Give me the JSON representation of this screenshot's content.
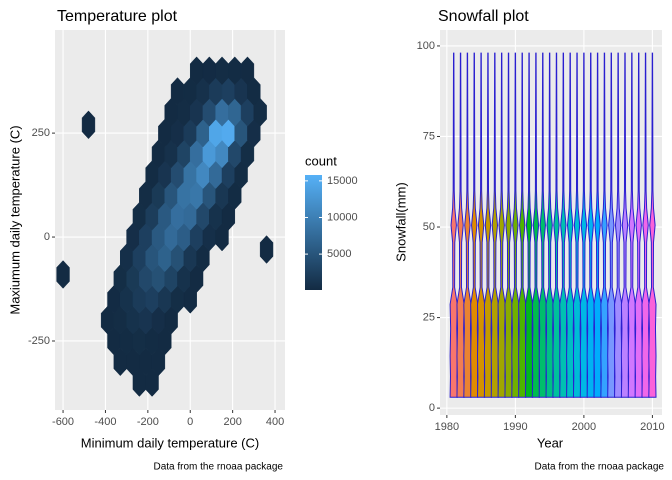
{
  "chart_data": [
    {
      "type": "hexbin",
      "title": "Temperature plot",
      "x_label": "Minimum daily temperature (C)",
      "y_label": "Maxiumum daily temperature (C)",
      "caption": "Data from the rnoaa package",
      "legend_title": "count",
      "xlim": [
        -638,
        447
      ],
      "ylim": [
        -416,
        498
      ],
      "xticks": [
        -600,
        -400,
        -200,
        0,
        200,
        400
      ],
      "yticks": [
        -250,
        0,
        250
      ],
      "legend_lim": [
        100,
        15800
      ],
      "legend_ticks": [
        5000,
        10000,
        15000
      ],
      "low_color": "#132B43",
      "high_color": "#56B1F7",
      "grid": true,
      "x": [
        -240,
        -180,
        -330,
        -270,
        -210,
        -150,
        -360,
        -300,
        -240,
        -180,
        -120,
        -390,
        -330,
        -270,
        -210,
        -150,
        -90,
        -360,
        -300,
        -240,
        -180,
        -120,
        -60,
        0,
        -330,
        -270,
        -210,
        -150,
        -90,
        -30,
        30,
        -300,
        -240,
        -180,
        -120,
        -60,
        0,
        60,
        -270,
        -210,
        -150,
        -90,
        -30,
        30,
        90,
        150,
        -240,
        -180,
        -120,
        -60,
        0,
        60,
        120,
        180,
        -210,
        -150,
        -90,
        -30,
        30,
        90,
        150,
        210,
        -180,
        -120,
        -60,
        0,
        60,
        120,
        180,
        240,
        -150,
        -90,
        -30,
        30,
        90,
        150,
        210,
        270,
        -120,
        -60,
        0,
        60,
        120,
        180,
        240,
        300,
        -90,
        -30,
        30,
        90,
        150,
        210,
        270,
        330,
        -60,
        0,
        60,
        120,
        180,
        240,
        300,
        30,
        90,
        150,
        210,
        270,
        -600,
        -480,
        360
      ],
      "y": [
        -350,
        -350,
        -300,
        -300,
        -300,
        -300,
        -250,
        -250,
        -250,
        -250,
        -250,
        -200,
        -200,
        -200,
        -200,
        -200,
        -200,
        -150,
        -150,
        -150,
        -150,
        -150,
        -150,
        -150,
        -100,
        -100,
        -100,
        -100,
        -100,
        -100,
        -100,
        -50,
        -50,
        -50,
        -50,
        -50,
        -50,
        -50,
        0,
        0,
        0,
        0,
        0,
        0,
        0,
        0,
        50,
        50,
        50,
        50,
        50,
        50,
        50,
        50,
        100,
        100,
        100,
        100,
        100,
        100,
        100,
        100,
        150,
        150,
        150,
        150,
        150,
        150,
        150,
        150,
        200,
        200,
        200,
        200,
        200,
        200,
        200,
        200,
        250,
        250,
        250,
        250,
        250,
        250,
        250,
        250,
        300,
        300,
        300,
        300,
        300,
        300,
        300,
        300,
        350,
        350,
        350,
        350,
        350,
        350,
        350,
        400,
        400,
        400,
        400,
        400,
        -90,
        270,
        -30
      ],
      "counts": [
        20,
        30,
        20,
        60,
        80,
        30,
        40,
        200,
        400,
        200,
        40,
        30,
        300,
        900,
        1200,
        500,
        60,
        150,
        900,
        2000,
        2500,
        1500,
        400,
        50,
        400,
        1800,
        3500,
        4500,
        3000,
        900,
        100,
        600,
        2500,
        5000,
        6500,
        4500,
        1500,
        200,
        500,
        2500,
        5500,
        7500,
        6000,
        2500,
        600,
        60,
        400,
        2200,
        5500,
        8000,
        7500,
        3500,
        900,
        100,
        300,
        1800,
        5000,
        8500,
        9000,
        5000,
        1500,
        200,
        200,
        1200,
        4000,
        8500,
        11000,
        7500,
        2500,
        300,
        100,
        800,
        3000,
        8000,
        13000,
        11000,
        3500,
        400,
        80,
        500,
        2000,
        6500,
        14500,
        15000,
        5000,
        500,
        50,
        300,
        1200,
        4000,
        8000,
        7000,
        2500,
        300,
        40,
        200,
        800,
        2000,
        2500,
        1200,
        200,
        40,
        150,
        300,
        200,
        60,
        5,
        5,
        5
      ]
    },
    {
      "type": "violin",
      "title": "Snowfall plot",
      "x_label": "Year",
      "y_label": "Snowfall(mm)",
      "caption": "Data from the rnoaa package",
      "xlim": [
        1979,
        2011.4
      ],
      "ylim": [
        -1.9,
        104.4
      ],
      "xticks": [
        1980,
        1990,
        2000,
        2010
      ],
      "yticks": [
        0,
        25,
        50,
        75,
        100
      ],
      "grid": true,
      "outline_color": "#2a1fd0",
      "x": [
        1981,
        1982,
        1983,
        1984,
        1985,
        1986,
        1987,
        1988,
        1989,
        1990,
        1991,
        1992,
        1993,
        1994,
        1995,
        1996,
        1997,
        1998,
        1999,
        2000,
        2001,
        2002,
        2003,
        2004,
        2005,
        2006,
        2007,
        2008,
        2009,
        2010
      ],
      "ymin": [
        3,
        3,
        3,
        3,
        3,
        3,
        3,
        3,
        3,
        3,
        3,
        3,
        3,
        3,
        3,
        3,
        3,
        3,
        3,
        3,
        3,
        3,
        3,
        3,
        3,
        3,
        3,
        3,
        3,
        3
      ],
      "ymax": [
        98,
        98,
        98,
        98,
        98,
        98,
        98,
        98,
        98,
        98,
        98,
        98,
        98,
        98,
        98,
        98,
        98,
        98,
        98,
        98,
        98,
        98,
        98,
        98,
        98,
        98,
        98,
        98,
        98,
        98
      ],
      "colors": [
        "#F8766D",
        "#F27D52",
        "#EA8331",
        "#E08B00",
        "#D39200",
        "#C49A00",
        "#B3A000",
        "#A0A600",
        "#8AAB00",
        "#70B000",
        "#4DB400",
        "#00B81F",
        "#00BB4E",
        "#00BE6C",
        "#00C085",
        "#00C19C",
        "#00C0B2",
        "#00BFC4",
        "#00BCD6",
        "#00B8E5",
        "#00B2F3",
        "#00ACFC",
        "#35A2FF",
        "#7997FF",
        "#9F8CFF",
        "#BB81FF",
        "#D177FF",
        "#E26EF7",
        "#F067E9",
        "#FA62D9"
      ]
    }
  ]
}
